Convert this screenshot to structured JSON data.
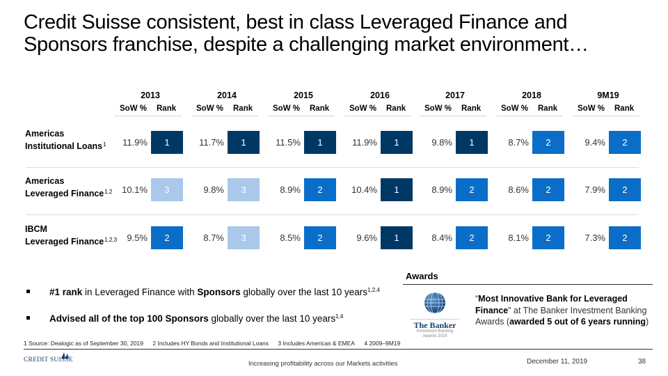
{
  "title": {
    "line1": "Credit Suisse consistent, best in class Leveraged Finance and",
    "line2": "Sponsors franchise, despite a challenging market environment…"
  },
  "table": {
    "sow_label": "SoW %",
    "rank_label": "Rank",
    "years": [
      "2013",
      "2014",
      "2015",
      "2016",
      "2017",
      "2018",
      "9M19"
    ],
    "rank_colors": {
      "1": "#003865",
      "2": "#0a6ec8",
      "3": "#a9c8ea"
    },
    "rows": [
      {
        "label1": "Americas",
        "label2": "Institutional Loans",
        "footnote": "1",
        "sow": [
          "11.9%",
          "11.7%",
          "11.5%",
          "11.9%",
          "9.8%",
          "8.7%",
          "9.4%"
        ],
        "rank": [
          "1",
          "1",
          "1",
          "1",
          "1",
          "2",
          "2"
        ]
      },
      {
        "label1": "Americas",
        "label2": "Leveraged Finance",
        "footnote": "1,2",
        "sow": [
          "10.1%",
          "9.8%",
          "8.9%",
          "10.4%",
          "8.9%",
          "8.6%",
          "7.9%"
        ],
        "rank": [
          "3",
          "3",
          "2",
          "1",
          "2",
          "2",
          "2"
        ]
      },
      {
        "label1": "IBCM",
        "label2": "Leveraged Finance",
        "footnote": "1,2,3",
        "sow": [
          "9.5%",
          "8.7%",
          "8.5%",
          "9.6%",
          "8.4%",
          "8.1%",
          "7.3%"
        ],
        "rank": [
          "2",
          "3",
          "2",
          "1",
          "2",
          "2",
          "2"
        ]
      }
    ]
  },
  "bullets": [
    {
      "b1": "#1 rank",
      "t1": " in Leveraged Finance with ",
      "b2": "Sponsors",
      "t2": " globally over the last 10 years",
      "sup": "1,2,4"
    },
    {
      "b1": "Advised all of the top 100 Sponsors",
      "t1": " globally over the last 10 years",
      "b2": "",
      "t2": "",
      "sup": "1,4"
    }
  ],
  "footnotes": [
    "1 Source: Dealogic as of September 30, 2019",
    "2 Includes HY Bonds and Institutional Loans",
    "3 Includes Americas & EMEA",
    "4 2009–9M19"
  ],
  "awards": {
    "title": "Awards",
    "logo_name": "The Banker",
    "logo_sub1": "Investment Banking",
    "logo_sub2": "Awards 2019",
    "quote_open": "“",
    "quote_bold": "Most Innovative Bank for Leveraged Finance",
    "quote_close": "” at The Banker Investment Banking Awards (",
    "bold2": "awarded 5 out of 6 years running",
    "end": ")"
  },
  "footer": {
    "logo_text": "CREDIT SUISSE",
    "center": "Increasing profitability across our Markets activities",
    "date": "December 11, 2019",
    "page": "38"
  }
}
